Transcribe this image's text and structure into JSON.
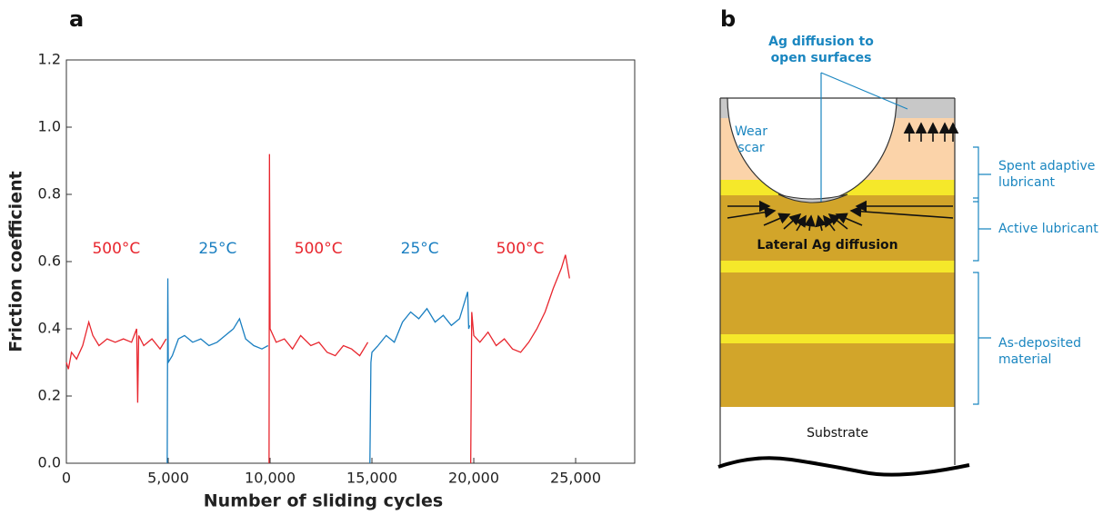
{
  "chart_data": {
    "type": "line",
    "panel_label": "a",
    "xlabel": "Number of sliding cycles",
    "ylabel": "Friction coefficient",
    "xlim": [
      0,
      27900
    ],
    "ylim": [
      0,
      1.2
    ],
    "xticks": [
      0,
      {
        "value": 5000,
        "label": "5,000"
      },
      {
        "value": 10000,
        "label": "10,000"
      },
      {
        "value": 15000,
        "label": "15,000"
      },
      {
        "value": 20000,
        "label": "20,000"
      },
      {
        "value": 25000,
        "label": "25,000"
      }
    ],
    "yticks": [
      {
        "value": 0,
        "label": "0.0"
      },
      0.2,
      0.4,
      0.6,
      0.8,
      {
        "value": 1,
        "label": "1.0"
      },
      1.2
    ],
    "series": [
      {
        "name": "500°C",
        "color": "#e8262e",
        "x": [
          0,
          100,
          250,
          500,
          800,
          1100,
          1300,
          1600,
          2000,
          2400,
          2800,
          3200,
          3450,
          3500,
          3550,
          3800,
          4200,
          4600,
          4900
        ],
        "values": [
          0.3,
          0.28,
          0.33,
          0.31,
          0.35,
          0.42,
          0.38,
          0.35,
          0.37,
          0.36,
          0.37,
          0.36,
          0.4,
          0.18,
          0.38,
          0.35,
          0.37,
          0.34,
          0.37
        ]
      },
      {
        "name": "25°C",
        "color": "#1a7fc1",
        "x": [
          4950,
          4980,
          5000,
          5200,
          5500,
          5800,
          6200,
          6600,
          7000,
          7400,
          7800,
          8200,
          8500,
          8800,
          9200,
          9600,
          9900
        ],
        "values": [
          0.0,
          0.55,
          0.3,
          0.32,
          0.37,
          0.38,
          0.36,
          0.37,
          0.35,
          0.36,
          0.38,
          0.4,
          0.43,
          0.37,
          0.35,
          0.34,
          0.35
        ]
      },
      {
        "name": "500°C",
        "color": "#e8262e",
        "x": [
          9950,
          9970,
          10000,
          10300,
          10700,
          11100,
          11500,
          12000,
          12400,
          12800,
          13200,
          13600,
          14000,
          14400,
          14800
        ],
        "values": [
          0.0,
          0.92,
          0.4,
          0.36,
          0.37,
          0.34,
          0.38,
          0.35,
          0.36,
          0.33,
          0.32,
          0.35,
          0.34,
          0.32,
          0.36
        ]
      },
      {
        "name": "25°C",
        "color": "#1a7fc1",
        "x": [
          14900,
          14950,
          15000,
          15300,
          15700,
          16100,
          16500,
          16900,
          17300,
          17700,
          18100,
          18500,
          18900,
          19300,
          19700,
          19750,
          19800
        ],
        "values": [
          0.0,
          0.3,
          0.33,
          0.35,
          0.38,
          0.36,
          0.42,
          0.45,
          0.43,
          0.46,
          0.42,
          0.44,
          0.41,
          0.43,
          0.51,
          0.4,
          0.41
        ]
      },
      {
        "name": "500°C",
        "color": "#e8262e",
        "x": [
          19850,
          19900,
          20000,
          20300,
          20700,
          21100,
          21500,
          21900,
          22300,
          22700,
          23100,
          23500,
          23900,
          24300,
          24500,
          24700
        ],
        "values": [
          0.0,
          0.45,
          0.38,
          0.36,
          0.39,
          0.35,
          0.37,
          0.34,
          0.33,
          0.36,
          0.4,
          0.45,
          0.52,
          0.58,
          0.62,
          0.55
        ]
      }
    ]
  },
  "diagram": {
    "panel_label": "b",
    "callout": [
      "Ag diffusion to",
      "open surfaces"
    ],
    "wear_scar": [
      "Wear",
      "scar"
    ],
    "lateral": "Lateral Ag diffusion",
    "substrate": "Substrate",
    "layers": [
      [
        "Spent adaptive",
        "lubricant"
      ],
      [
        "Active lubricant"
      ],
      [
        "As-deposited",
        "material"
      ]
    ]
  }
}
